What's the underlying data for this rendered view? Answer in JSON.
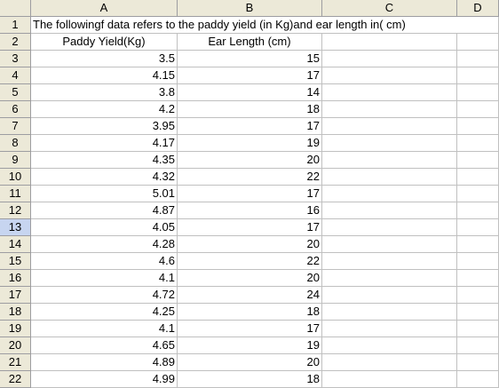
{
  "columns": [
    "A",
    "B",
    "C",
    "D"
  ],
  "title_row": {
    "row": "1",
    "text": "The followingf data refers to the paddy yield (in Kg)and ear length in( cm)"
  },
  "header_row": {
    "row": "2",
    "col_a": "Paddy Yield(Kg)",
    "col_b": "Ear Length (cm)"
  },
  "selected_row": "13",
  "rows": [
    {
      "row": "3",
      "a": "3.5",
      "b": "15"
    },
    {
      "row": "4",
      "a": "4.15",
      "b": "17"
    },
    {
      "row": "5",
      "a": "3.8",
      "b": "14"
    },
    {
      "row": "6",
      "a": "4.2",
      "b": "18"
    },
    {
      "row": "7",
      "a": "3.95",
      "b": "17"
    },
    {
      "row": "8",
      "a": "4.17",
      "b": "19"
    },
    {
      "row": "9",
      "a": "4.35",
      "b": "20"
    },
    {
      "row": "10",
      "a": "4.32",
      "b": "22"
    },
    {
      "row": "11",
      "a": "5.01",
      "b": "17"
    },
    {
      "row": "12",
      "a": "4.87",
      "b": "16"
    },
    {
      "row": "13",
      "a": "4.05",
      "b": "17"
    },
    {
      "row": "14",
      "a": "4.28",
      "b": "20"
    },
    {
      "row": "15",
      "a": "4.6",
      "b": "22"
    },
    {
      "row": "16",
      "a": "4.1",
      "b": "20"
    },
    {
      "row": "17",
      "a": "4.72",
      "b": "24"
    },
    {
      "row": "18",
      "a": "4.25",
      "b": "18"
    },
    {
      "row": "19",
      "a": "4.1",
      "b": "17"
    },
    {
      "row": "20",
      "a": "4.65",
      "b": "19"
    },
    {
      "row": "21",
      "a": "4.89",
      "b": "20"
    },
    {
      "row": "22",
      "a": "4.99",
      "b": "18"
    }
  ]
}
